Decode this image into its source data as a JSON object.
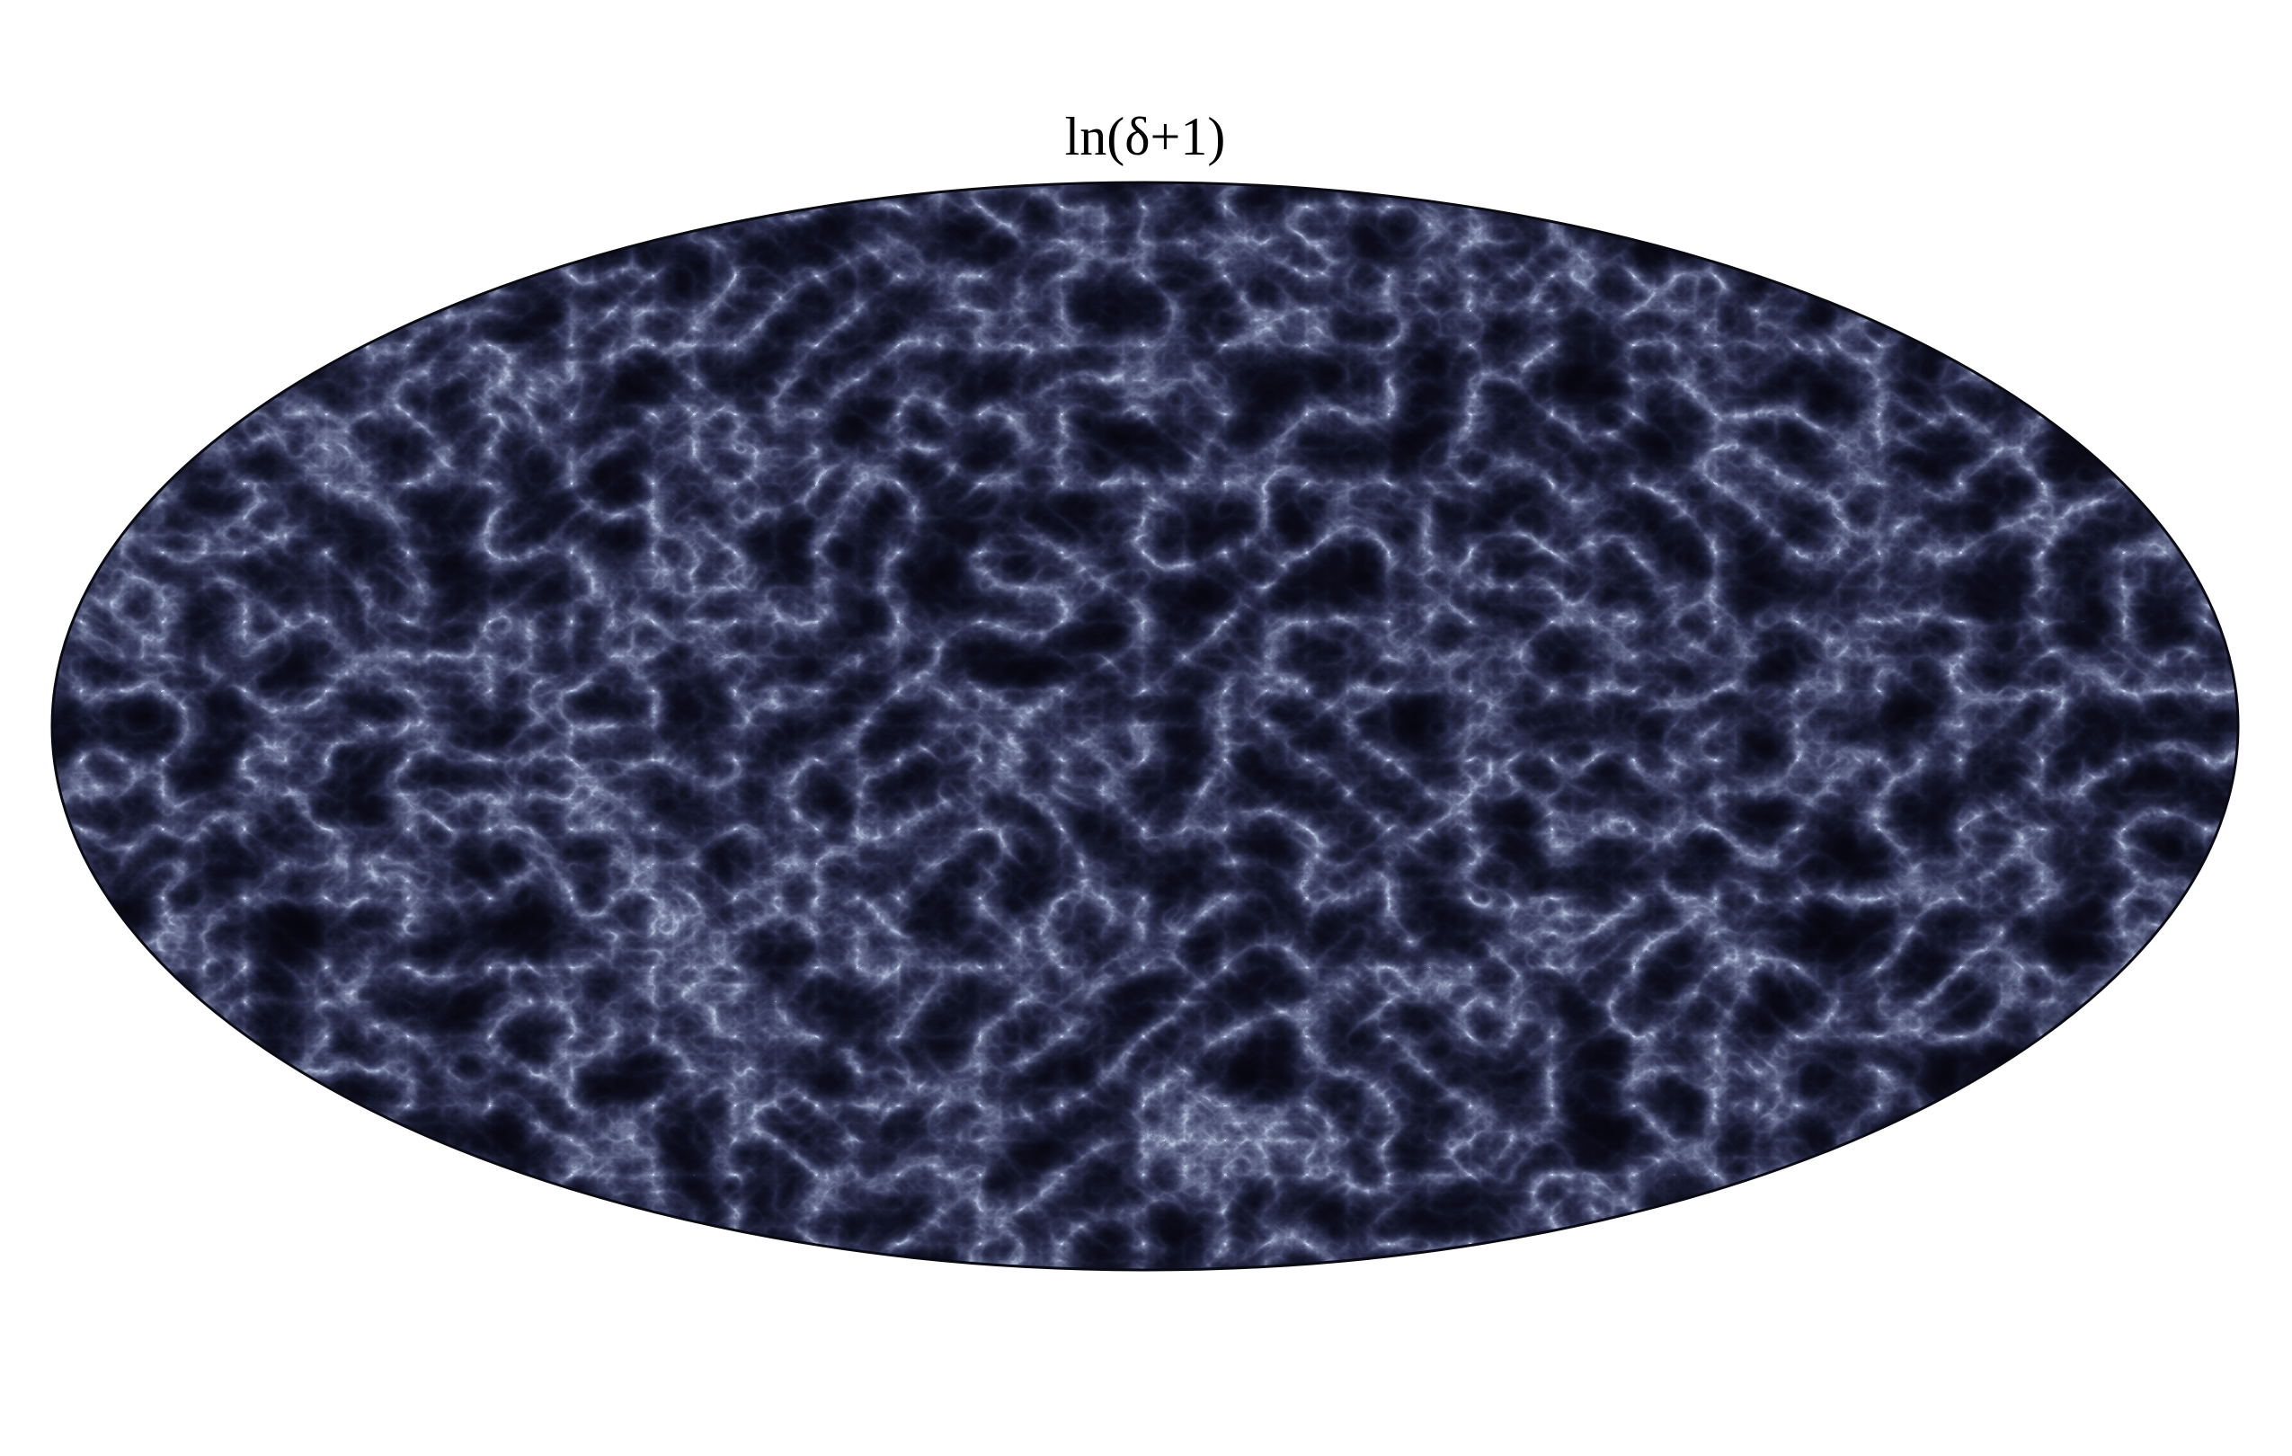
{
  "title": "ln(δ+1)"
}
